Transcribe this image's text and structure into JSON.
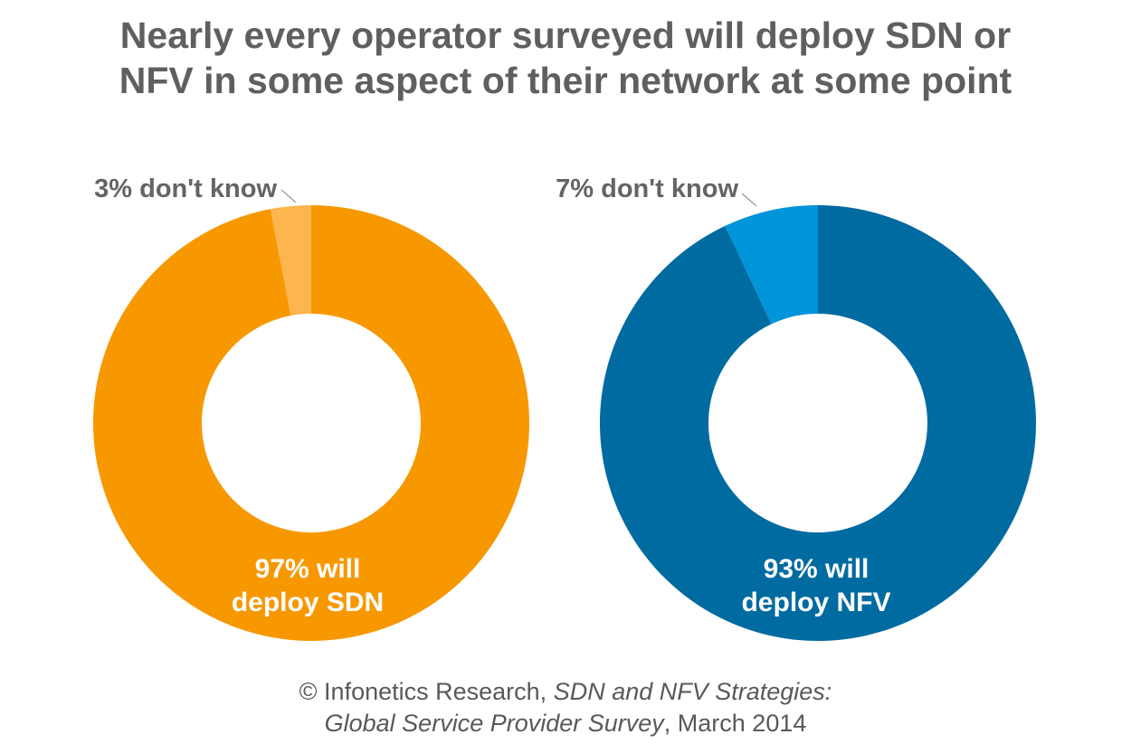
{
  "title_line1": "Nearly every operator surveyed will deploy SDN or",
  "title_line2": "NFV in some aspect of their network at some point",
  "source": {
    "prefix": "© Infonetics Research, ",
    "report_italic_1": "SDN and NFV Strategies:",
    "report_italic_2": "Global Service Provider Survey",
    "suffix": ", March 2014"
  },
  "chart_data": [
    {
      "type": "pie",
      "donut": true,
      "categories": [
        "will deploy SDN",
        "don't know"
      ],
      "values": [
        97,
        3
      ],
      "colors": [
        "#F79800",
        "#FDB54F"
      ],
      "labels": {
        "main_line1": "97% will",
        "main_line2": "deploy SDN",
        "minor": "3% don't know"
      }
    },
    {
      "type": "pie",
      "donut": true,
      "categories": [
        "will deploy NFV",
        "don't know"
      ],
      "values": [
        93,
        7
      ],
      "colors": [
        "#006BA0",
        "#0094DA"
      ],
      "labels": {
        "main_line1": "93% will",
        "main_line2": "deploy NFV",
        "minor": "7% don't know"
      }
    }
  ]
}
